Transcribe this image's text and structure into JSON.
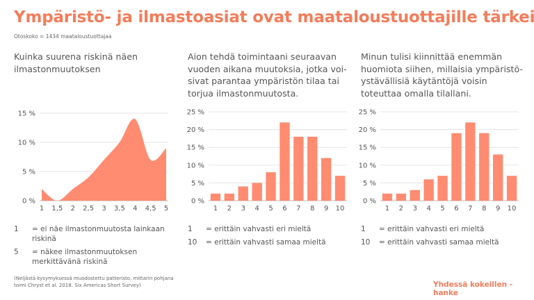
{
  "title": "Ympäristö- ja ilmastoasiat ovat maataloustuottajille tärkeitä",
  "sample": "Otoskoko = 1434 maataloustuottajaa",
  "brand": "Yhdessä kokeillen -hanke",
  "footnote": "(Neljästä kysymyksessä muodostettu patteristo, mittarin pohjana toimi Chryst et al. 2018. Six Americas Short Survey)",
  "colors": {
    "accent": "#F47C5A",
    "bar": "#FF8B70",
    "grid": "#e3e3e3",
    "text": "#555555"
  },
  "panels": [
    {
      "question": "Kuinka suurena riskinä näen ilmastonmuutoksen",
      "legend": [
        {
          "key": "1",
          "text": "= ei näe ilmastonmuutosta lainkaan riskinä"
        },
        {
          "key": "5",
          "text": "= näkee ilmastonmuutoksen merkittävänä riskinä"
        }
      ]
    },
    {
      "question": "Aion tehdä toimintaani seuraavan vuoden aikana muutoksia, jotka voi-sivat parantaa ympäristön tilaa tai torjua ilmastonmuutosta.",
      "legend": [
        {
          "key": "1",
          "text": "= erittäin vahvasti eri mieltä"
        },
        {
          "key": "10",
          "text": "= erittäin vahvasti samaa mieltä"
        }
      ]
    },
    {
      "question": "Minun tulisi kiinnittää enemmän huomiota siihen, millaisia ympäristö-ystävällisiä käytäntöjä voisin toteuttaa omalla tilallani.",
      "legend": [
        {
          "key": "1",
          "text": "= erittäin vahvasti eri mieltä"
        },
        {
          "key": "10",
          "text": "= erittäin vahvasti samaa mieltä"
        }
      ]
    }
  ],
  "chart_data": [
    {
      "type": "area",
      "categories": [
        "1",
        "1,5",
        "2",
        "2,5",
        "3",
        "3,5",
        "4",
        "4,5",
        "5"
      ],
      "values": [
        2,
        0,
        2,
        4,
        7,
        10,
        14,
        7,
        9
      ],
      "ylim": [
        0,
        15
      ],
      "yticks": [
        "0 %",
        "5 %",
        "10 %",
        "15 %"
      ],
      "ytick_values": [
        0,
        5,
        10,
        15
      ],
      "grid": true
    },
    {
      "type": "bar",
      "categories": [
        "1",
        "2",
        "3",
        "4",
        "5",
        "6",
        "7",
        "8",
        "9",
        "10"
      ],
      "values": [
        2,
        2,
        4,
        5,
        8,
        22,
        18,
        18,
        12,
        7
      ],
      "ylim": [
        0,
        25
      ],
      "yticks": [
        "0 %",
        "5 %",
        "10 %",
        "15 %",
        "20 %",
        "25 %"
      ],
      "ytick_values": [
        0,
        5,
        10,
        15,
        20,
        25
      ],
      "grid": true
    },
    {
      "type": "bar",
      "categories": [
        "1",
        "2",
        "3",
        "4",
        "5",
        "6",
        "7",
        "8",
        "9",
        "10"
      ],
      "values": [
        2,
        2,
        3,
        6,
        7,
        19,
        22,
        19,
        13,
        7
      ],
      "ylim": [
        0,
        25
      ],
      "yticks": [
        "0 %",
        "5 %",
        "10 %",
        "15 %",
        "20 %",
        "25 %"
      ],
      "ytick_values": [
        0,
        5,
        10,
        15,
        20,
        25
      ],
      "grid": true
    }
  ]
}
